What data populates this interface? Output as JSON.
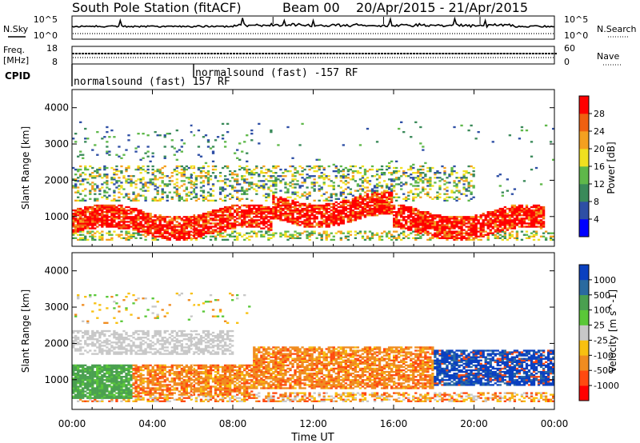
{
  "header": {
    "station": "South Pole Station (fitACF)",
    "beam": "Beam 00",
    "date_range": "20/Apr/2015 - 21/Apr/2015"
  },
  "side_labels": {
    "n_sky": "N.Sky",
    "n_search": "N.Search",
    "freq_line1": "Freq.",
    "freq_line2": "[MHz]",
    "nave": "Nave",
    "cpid": "CPID"
  },
  "top_axes": {
    "noise_left_ticks": [
      "10^5",
      "10^0"
    ],
    "noise_right_ticks": [
      "10^5",
      "10^0"
    ],
    "freq_left_ticks": [
      "18",
      "8"
    ],
    "freq_right_ticks": [
      "60",
      "0"
    ]
  },
  "cpid_annotations": [
    {
      "label": "normalsound (fast) 157 RF",
      "hour": 0.0
    },
    {
      "label": "normalsound (fast) -157 RF",
      "hour": 6.05
    }
  ],
  "x_axis": {
    "label": "Time UT",
    "ticks": [
      "00:00",
      "04:00",
      "08:00",
      "12:00",
      "16:00",
      "20:00",
      "00:00"
    ]
  },
  "colors": {
    "power_scale": [
      "#0000ff",
      "#2e4fa5",
      "#3a8a5a",
      "#5fb84a",
      "#f0e020",
      "#f4a020",
      "#f06010",
      "#ff0000"
    ],
    "velocity_scale": [
      "#ff0000",
      "#ff4a10",
      "#f08c20",
      "#f8c010",
      "#c8c8c8",
      "#5ac838",
      "#4aa050",
      "#2a6aa0",
      "#0a40c0"
    ]
  },
  "chart_data": [
    {
      "type": "heatmap",
      "title": "",
      "xlabel": "Time UT",
      "ylabel": "Slant Range [km]",
      "xlim": [
        0,
        24
      ],
      "ylim": [
        180,
        4500
      ],
      "yticks": [
        1000,
        2000,
        3000,
        4000
      ],
      "colorbar": {
        "label": "Power [dB]",
        "ticks": [
          "4",
          "8",
          "12",
          "16",
          "20",
          "24",
          "28"
        ],
        "range": [
          0,
          32
        ]
      },
      "features": [
        {
          "name": "strong F-region backscatter",
          "hours": [
            0,
            22
          ],
          "range_km": [
            600,
            1400
          ],
          "power_db": 28
        },
        {
          "name": "weaker scatter above",
          "hours": [
            0,
            20
          ],
          "range_km": [
            1500,
            2500
          ],
          "power_db": 12
        },
        {
          "name": "near-range band",
          "hours": [
            0,
            24
          ],
          "range_km": [
            300,
            600
          ],
          "power_db": 10
        },
        {
          "name": "sparse high-range echoes",
          "hours": [
            0,
            10
          ],
          "range_km": [
            2600,
            3400
          ],
          "power_db": 8
        }
      ]
    },
    {
      "type": "heatmap",
      "title": "",
      "xlabel": "Time UT",
      "ylabel": "Slant Range [km]",
      "xlim": [
        0,
        24
      ],
      "ylim": [
        180,
        4500
      ],
      "yticks": [
        1000,
        2000,
        3000,
        4000
      ],
      "colorbar": {
        "label": "Velocity [m s^-1]",
        "ticks": [
          "1000",
          "500",
          "100",
          "25",
          "-25",
          "-100",
          "-500",
          "-1000"
        ],
        "range": [
          -1000,
          1000
        ]
      },
      "features": [
        {
          "name": "positive velocity region",
          "hours": [
            0,
            3
          ],
          "range_km": [
            500,
            1300
          ],
          "velocity_ms": 300
        },
        {
          "name": "negative velocity region",
          "hours": [
            3,
            18
          ],
          "range_km": [
            600,
            1900
          ],
          "velocity_ms": -200
        },
        {
          "name": "ground scatter",
          "hours": [
            0,
            8
          ],
          "range_km": [
            1700,
            2300
          ],
          "velocity_ms": 0
        },
        {
          "name": "positive velocity region",
          "hours": [
            18,
            24
          ],
          "range_km": [
            800,
            1800
          ],
          "velocity_ms": 700
        }
      ]
    }
  ]
}
